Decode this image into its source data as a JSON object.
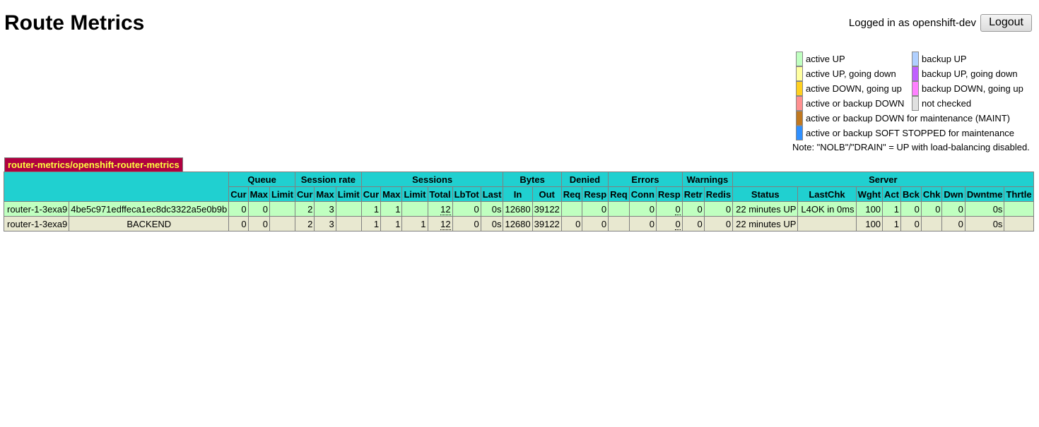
{
  "page": {
    "title": "Route Metrics"
  },
  "session": {
    "login_text": "Logged in as openshift-dev",
    "logout_label": "Logout"
  },
  "legend": {
    "items": [
      {
        "label": "active UP",
        "color": "#c0ffc0"
      },
      {
        "label": "backup UP",
        "color": "#b0d0ff"
      },
      {
        "label": "active UP, going down",
        "color": "#ffffa0"
      },
      {
        "label": "backup UP, going down",
        "color": "#c060ff"
      },
      {
        "label": "active DOWN, going up",
        "color": "#ffd020"
      },
      {
        "label": "backup DOWN, going up",
        "color": "#ff80ff"
      },
      {
        "label": "active or backup DOWN",
        "color": "#ff9090"
      },
      {
        "label": "not checked",
        "color": "#e0e0e0"
      }
    ],
    "wide_items": [
      {
        "label": "active or backup DOWN for maintenance (MAINT)",
        "color": "#c07820"
      },
      {
        "label": "active or backup SOFT STOPPED for maintenance",
        "color": "#3090ff"
      }
    ],
    "note": "Note: \"NOLB\"/\"DRAIN\" = UP with load-balancing disabled."
  },
  "proxy": {
    "name": "router-metrics/openshift-router-metrics",
    "groups": [
      "Queue",
      "Session rate",
      "Sessions",
      "Bytes",
      "Denied",
      "Errors",
      "Warnings",
      "Server"
    ],
    "columns": [
      "Cur",
      "Max",
      "Limit",
      "Cur",
      "Max",
      "Limit",
      "Cur",
      "Max",
      "Limit",
      "Total",
      "LbTot",
      "Last",
      "In",
      "Out",
      "Req",
      "Resp",
      "Req",
      "Conn",
      "Resp",
      "Retr",
      "Redis",
      "Status",
      "LastChk",
      "Wght",
      "Act",
      "Bck",
      "Chk",
      "Dwn",
      "Dwntme",
      "Thrtle"
    ],
    "rows": [
      {
        "type": "server",
        "name": "router-1-3exa9",
        "id": "4be5c971edffeca1ec8dc3322a5e0b9b",
        "values": [
          "0",
          "0",
          "",
          "2",
          "3",
          "",
          "1",
          "1",
          "",
          "12",
          "0",
          "0s",
          "12680",
          "39122",
          "",
          "0",
          "",
          "0",
          "0",
          "0",
          "0",
          "22 minutes UP",
          "L4OK in 0ms",
          "100",
          "1",
          "0",
          "0",
          "0",
          "0s",
          ""
        ]
      },
      {
        "type": "backend",
        "name": "router-1-3exa9",
        "id": "BACKEND",
        "values": [
          "0",
          "0",
          "",
          "2",
          "3",
          "",
          "1",
          "1",
          "1",
          "12",
          "0",
          "0s",
          "12680",
          "39122",
          "0",
          "0",
          "",
          "0",
          "0",
          "0",
          "0",
          "22 minutes UP",
          "",
          "100",
          "1",
          "0",
          "",
          "0",
          "0s",
          ""
        ]
      }
    ]
  }
}
